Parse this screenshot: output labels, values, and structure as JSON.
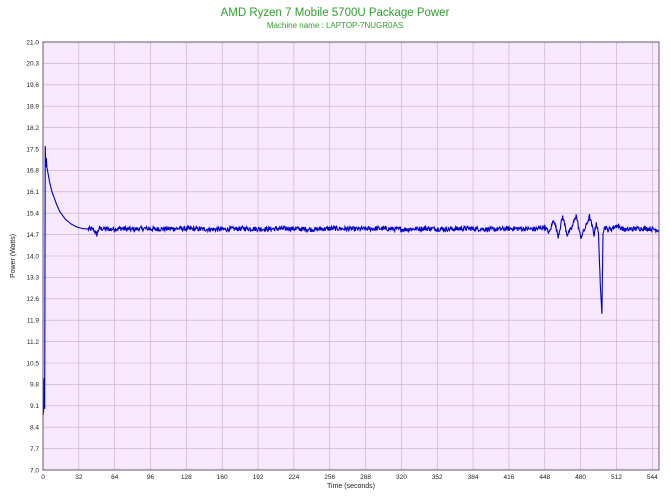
{
  "chart_data": {
    "type": "line",
    "title": "AMD Ryzen 7 Mobile 5700U Package Power",
    "subtitle": "Machine name : LAPTOP-7NUGR0AS",
    "xlabel": "Time (seconds)",
    "ylabel": "Power (Watts)",
    "xlim": [
      0,
      550
    ],
    "ylim": [
      7.0,
      21.0
    ],
    "x_ticks": [
      0,
      32,
      64,
      96,
      128,
      160,
      192,
      224,
      256,
      288,
      320,
      352,
      384,
      416,
      448,
      480,
      512,
      544
    ],
    "y_ticks": [
      "7.0",
      "7.7",
      "8.4",
      "9.1",
      "9.8",
      "10.5",
      "11.2",
      "11.9",
      "12.6",
      "13.3",
      "14.0",
      "14.7",
      "15.4",
      "16.1",
      "16.8",
      "17.5",
      "18.2",
      "18.9",
      "19.6",
      "20.3",
      "21.0"
    ],
    "grid": true,
    "plot_background": "#f7e8fb",
    "grid_color": "#c9a9cf",
    "line_color": "#0000cc",
    "title_color": "#2e9e2e",
    "series": [
      {
        "x": [
          0,
          0.5,
          1,
          1.5,
          2,
          2.5,
          3,
          3.5,
          4,
          5,
          6,
          8,
          10,
          12,
          15,
          18,
          20,
          25,
          30,
          35,
          40,
          45,
          48,
          50,
          60,
          70,
          80,
          90,
          100,
          120,
          140,
          160,
          180,
          200,
          220,
          240,
          260,
          280,
          300,
          320,
          340,
          360,
          380,
          400,
          420,
          440,
          448,
          452,
          456,
          460,
          464,
          468,
          472,
          476,
          480,
          484,
          488,
          492,
          494,
          496,
          498,
          499,
          500,
          501,
          502,
          504,
          508,
          512,
          520,
          530,
          540,
          550
        ],
        "y": [
          8.8,
          8.9,
          10.0,
          9.0,
          17.6,
          16.9,
          17.2,
          16.9,
          16.8,
          16.6,
          16.4,
          16.1,
          15.9,
          15.7,
          15.45,
          15.3,
          15.2,
          15.05,
          14.95,
          14.9,
          14.88,
          14.87,
          14.7,
          14.9,
          14.88,
          14.9,
          14.87,
          14.9,
          14.88,
          14.9,
          14.88,
          14.87,
          14.9,
          14.88,
          14.9,
          14.87,
          14.9,
          14.88,
          14.9,
          14.87,
          14.9,
          14.88,
          14.9,
          14.87,
          14.9,
          14.88,
          14.95,
          14.75,
          15.2,
          14.65,
          15.3,
          14.7,
          14.9,
          15.35,
          14.6,
          14.9,
          15.3,
          14.7,
          15.1,
          14.7,
          12.7,
          12.1,
          14.8,
          14.9,
          14.95,
          14.85,
          14.9,
          15.0,
          14.85,
          14.9,
          14.9,
          14.85
        ]
      }
    ]
  }
}
